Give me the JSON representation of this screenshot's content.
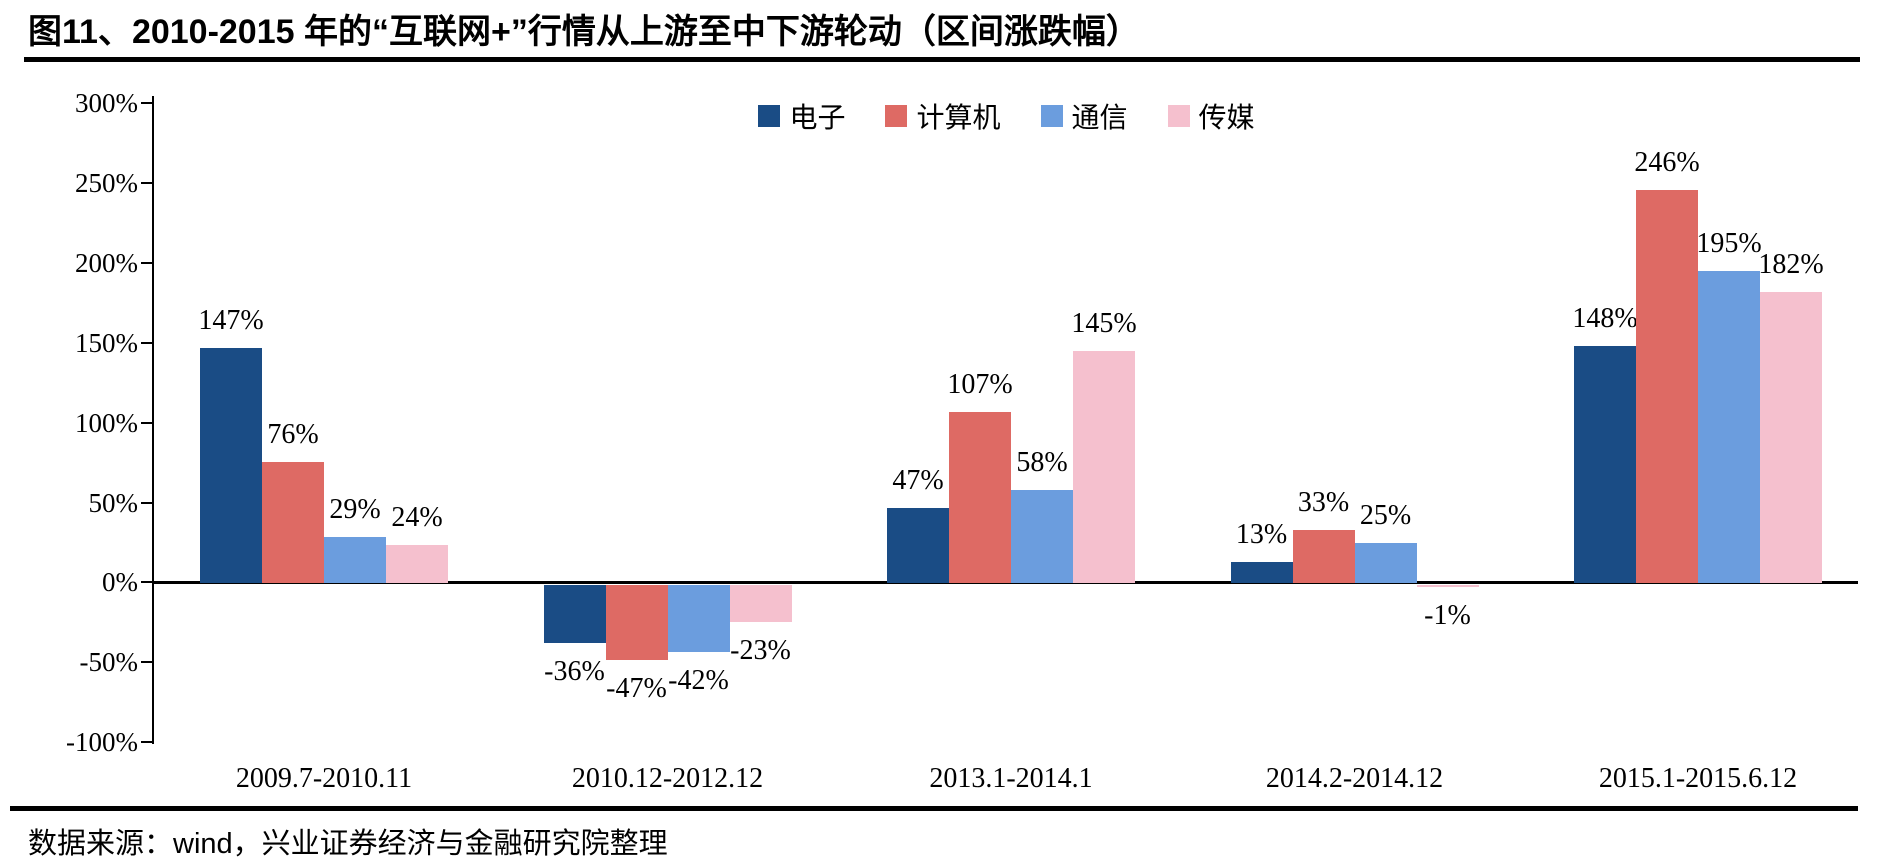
{
  "title": "图11、2010-2015 年的“互联网+”行情从上游至中下游轮动（区间涨跌幅）",
  "source_note": "数据来源：wind，兴业证券经济与金融研究院整理",
  "chart_data": {
    "type": "bar",
    "title": "2010-2015 年的“互联网+”行情从上游至中下游轮动（区间涨跌幅）",
    "categories": [
      "2009.7-2010.11",
      "2010.12-2012.12",
      "2013.1-2014.1",
      "2014.2-2014.12",
      "2015.1-2015.6.12"
    ],
    "series": [
      {
        "name": "电子",
        "color": "#1A4C85",
        "values": [
          147,
          -36,
          47,
          13,
          148
        ]
      },
      {
        "name": "计算机",
        "color": "#DE6A64",
        "values": [
          76,
          -47,
          107,
          33,
          246
        ]
      },
      {
        "name": "通信",
        "color": "#6B9DDE",
        "values": [
          29,
          -42,
          58,
          25,
          195
        ]
      },
      {
        "name": "传媒",
        "color": "#F5C0CE",
        "values": [
          24,
          -23,
          145,
          -1,
          182
        ]
      }
    ],
    "xlabel": "",
    "ylabel": "",
    "ylim": [
      -100,
      300
    ],
    "ytick_step": 50,
    "yticks": [
      "300%",
      "250%",
      "200%",
      "150%",
      "100%",
      "50%",
      "0%",
      "-50%",
      "-100%"
    ],
    "grid": false,
    "legend_position": "top-center",
    "value_label_suffix": "%",
    "axis_color": "#000000"
  }
}
